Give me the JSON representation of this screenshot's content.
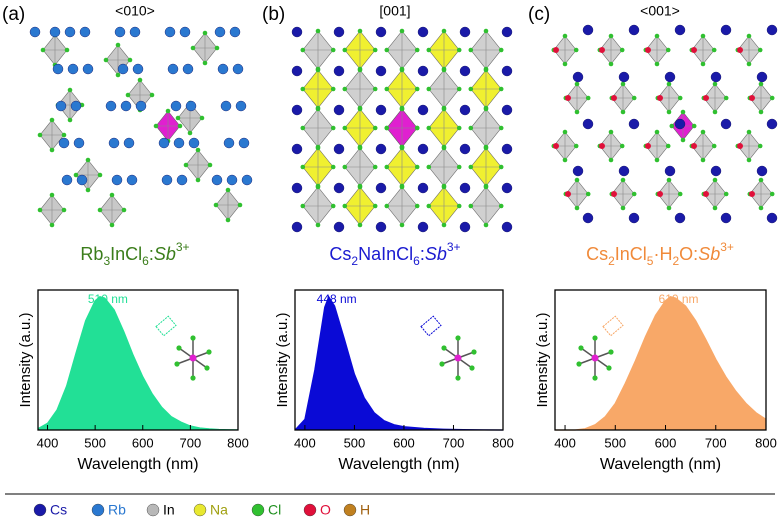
{
  "panels": [
    {
      "label": "(a)",
      "direction": "<010>",
      "formula_color": "#3a7d1a",
      "formula": [
        {
          "text": "Rb",
          "style": "normal"
        },
        {
          "text": "3",
          "style": "sub"
        },
        {
          "text": "InCl",
          "style": "normal"
        },
        {
          "text": "6",
          "style": "sub"
        },
        {
          "text": ":",
          "style": "normal"
        },
        {
          "text": "Sb",
          "style": "italic"
        },
        {
          "text": "3+",
          "style": "sup"
        }
      ]
    },
    {
      "label": "(b)",
      "direction": "[001]",
      "formula_color": "#1a1ad0",
      "formula": [
        {
          "text": "Cs",
          "style": "normal"
        },
        {
          "text": "2",
          "style": "sub"
        },
        {
          "text": "NaInCl",
          "style": "normal"
        },
        {
          "text": "6",
          "style": "sub"
        },
        {
          "text": ":",
          "style": "normal"
        },
        {
          "text": "Sb",
          "style": "italic"
        },
        {
          "text": "3+",
          "style": "sup"
        }
      ]
    },
    {
      "label": "(c)",
      "direction": "<001>",
      "formula_color": "#f08a3a",
      "formula": [
        {
          "text": "Cs",
          "style": "normal"
        },
        {
          "text": "2",
          "style": "sub"
        },
        {
          "text": "InCl",
          "style": "normal"
        },
        {
          "text": "5",
          "style": "sub"
        },
        {
          "text": "·H",
          "style": "normal"
        },
        {
          "text": "2",
          "style": "sub"
        },
        {
          "text": "O:",
          "style": "normal"
        },
        {
          "text": "Sb",
          "style": "italic"
        },
        {
          "text": "3+",
          "style": "sup"
        }
      ]
    }
  ],
  "chart_data": [
    {
      "type": "area",
      "annotation": "510 nm",
      "xlabel": "Wavelength (nm)",
      "ylabel": "Intensity (a.u.)",
      "color": "#22e096",
      "x": [
        380,
        400,
        420,
        440,
        460,
        480,
        500,
        510,
        520,
        540,
        560,
        580,
        600,
        620,
        640,
        660,
        680,
        700,
        720,
        740,
        760,
        780,
        800
      ],
      "values": [
        0.01,
        0.05,
        0.15,
        0.33,
        0.58,
        0.82,
        0.97,
        1.0,
        0.99,
        0.9,
        0.74,
        0.56,
        0.4,
        0.27,
        0.17,
        0.1,
        0.06,
        0.03,
        0.015,
        0.008,
        0.004,
        0.002,
        0.001
      ],
      "xlim": [
        380,
        800
      ],
      "xticks": [
        400,
        500,
        600,
        700,
        800
      ],
      "ylim": [
        0,
        1.05
      ]
    },
    {
      "type": "area",
      "annotation": "448 nm",
      "xlabel": "Wavelength (nm)",
      "ylabel": "Intensity (a.u.)",
      "color": "#0a0ad6",
      "x": [
        380,
        400,
        420,
        440,
        448,
        460,
        480,
        500,
        520,
        540,
        560,
        580,
        600,
        640,
        680,
        720,
        760,
        800
      ],
      "values": [
        0,
        0.08,
        0.45,
        0.92,
        1.0,
        0.93,
        0.68,
        0.42,
        0.24,
        0.13,
        0.07,
        0.04,
        0.025,
        0.012,
        0.006,
        0.003,
        0.001,
        0
      ],
      "xlim": [
        380,
        800
      ],
      "xticks": [
        400,
        500,
        600,
        700,
        800
      ],
      "ylim": [
        0,
        1.05
      ]
    },
    {
      "type": "area",
      "annotation": "610 nm",
      "xlabel": "Wavelength (nm)",
      "ylabel": "Intensity (a.u.)",
      "color": "#f8a868",
      "x": [
        380,
        400,
        420,
        440,
        460,
        480,
        500,
        520,
        540,
        560,
        580,
        600,
        610,
        620,
        640,
        660,
        680,
        700,
        720,
        740,
        760,
        780,
        800
      ],
      "values": [
        0,
        0,
        0,
        0.01,
        0.04,
        0.1,
        0.2,
        0.35,
        0.52,
        0.7,
        0.86,
        0.97,
        1.0,
        0.99,
        0.93,
        0.82,
        0.68,
        0.53,
        0.4,
        0.29,
        0.2,
        0.13,
        0.08
      ],
      "xlim": [
        380,
        800
      ],
      "xticks": [
        400,
        500,
        600,
        700,
        800
      ],
      "ylim": [
        0,
        1.05
      ]
    }
  ],
  "legend": [
    {
      "name": "Cs",
      "color": "#1a1aa8",
      "text_color": "#1a1aa8"
    },
    {
      "name": "Rb",
      "color": "#2a78d0",
      "text_color": "#2a78d0"
    },
    {
      "name": "In",
      "color": "#b8b8b8",
      "text_color": "#000000"
    },
    {
      "name": "Na",
      "color": "#e8e830",
      "text_color": "#a0a010"
    },
    {
      "name": "Cl",
      "color": "#30c030",
      "text_color": "#209020"
    },
    {
      "name": "O",
      "color": "#e0103a",
      "text_color": "#e0103a"
    },
    {
      "name": "H",
      "color": "#c08020",
      "text_color": "#a06010"
    }
  ]
}
